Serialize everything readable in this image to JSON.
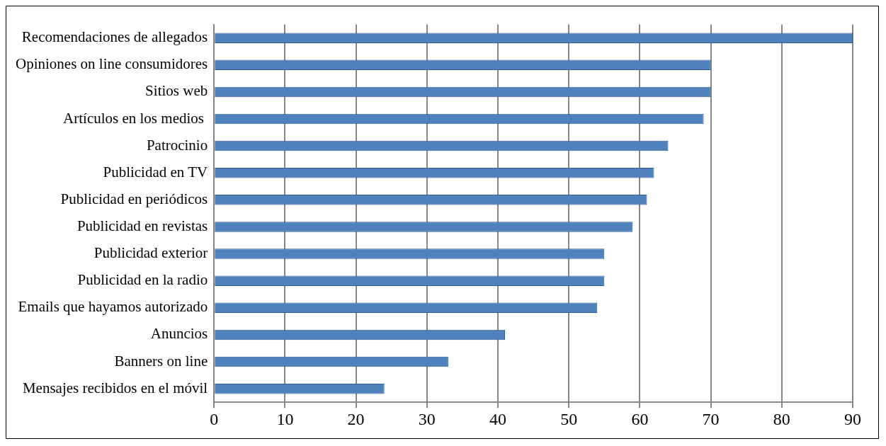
{
  "chart_data": {
    "type": "bar",
    "orientation": "horizontal",
    "categories": [
      "Recomendaciones de allegados",
      "Opiniones on line consumidores",
      "Sitios web",
      "Artículos en los medios ",
      "Patrocinio",
      "Publicidad en TV",
      "Publicidad en periódicos",
      "Publicidad en revistas",
      "Publicidad exterior",
      "Publicidad en la radio",
      "Emails que hayamos autorizado",
      "Anuncios",
      "Banners on line",
      "Mensajes recibidos en el móvil"
    ],
    "values": [
      90,
      70,
      70,
      69,
      64,
      62,
      61,
      59,
      55,
      55,
      54,
      41,
      33,
      24
    ],
    "color": "#4f81bd",
    "xlim": [
      0,
      90
    ],
    "xticks": [
      0,
      10,
      20,
      30,
      40,
      50,
      60,
      70,
      80,
      90
    ],
    "grid": "x",
    "legend": false
  }
}
